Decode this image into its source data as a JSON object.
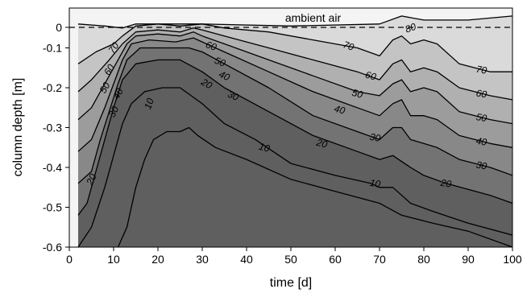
{
  "chart_data": {
    "type": "contour",
    "xlabel": "time [d]",
    "ylabel": "column depth [m]",
    "xlim": [
      0,
      100
    ],
    "ylim": [
      -0.6,
      0
    ],
    "xticks": [
      0,
      10,
      20,
      30,
      40,
      50,
      60,
      70,
      80,
      90,
      100
    ],
    "yticks": [
      0,
      -0.1,
      -0.2,
      -0.3,
      -0.4,
      -0.5,
      -0.6
    ],
    "annotation": "ambient air",
    "fill_colors": [
      "#f4f4f4",
      "#dadada",
      "#c4c4c4",
      "#b0b0b0",
      "#9c9c9c",
      "#888888",
      "#737373",
      "#5f5f5f"
    ],
    "levels": [
      {
        "level": 80,
        "points": [
          [
            2,
            -0.04
          ],
          [
            8,
            -0.045
          ],
          [
            12,
            -0.05
          ],
          [
            15,
            -0.04
          ],
          [
            30,
            -0.04
          ],
          [
            50,
            -0.045
          ],
          [
            70,
            -0.04
          ],
          [
            75,
            -0.02
          ],
          [
            80,
            -0.03
          ],
          [
            85,
            -0.03
          ],
          [
            90,
            -0.03
          ],
          [
            100,
            -0.02
          ]
        ]
      },
      {
        "level": 70,
        "points": [
          [
            2,
            -0.14
          ],
          [
            6,
            -0.11
          ],
          [
            10,
            -0.09
          ],
          [
            12,
            -0.07
          ],
          [
            15,
            -0.045
          ],
          [
            20,
            -0.04
          ],
          [
            25,
            -0.045
          ],
          [
            30,
            -0.04
          ],
          [
            35,
            -0.05
          ],
          [
            45,
            -0.06
          ],
          [
            55,
            -0.08
          ],
          [
            65,
            -0.1
          ],
          [
            70,
            -0.12
          ],
          [
            73,
            -0.08
          ],
          [
            75,
            -0.07
          ],
          [
            77,
            -0.09
          ],
          [
            80,
            -0.08
          ],
          [
            83,
            -0.09
          ],
          [
            88,
            -0.14
          ],
          [
            95,
            -0.16
          ],
          [
            100,
            -0.16
          ]
        ]
      },
      {
        "level": 60,
        "points": [
          [
            2,
            -0.21
          ],
          [
            5,
            -0.18
          ],
          [
            9,
            -0.13
          ],
          [
            12,
            -0.09
          ],
          [
            15,
            -0.06
          ],
          [
            20,
            -0.055
          ],
          [
            25,
            -0.06
          ],
          [
            28,
            -0.05
          ],
          [
            30,
            -0.055
          ],
          [
            35,
            -0.07
          ],
          [
            45,
            -0.1
          ],
          [
            55,
            -0.13
          ],
          [
            65,
            -0.16
          ],
          [
            70,
            -0.18
          ],
          [
            73,
            -0.14
          ],
          [
            75,
            -0.13
          ],
          [
            77,
            -0.16
          ],
          [
            80,
            -0.15
          ],
          [
            83,
            -0.16
          ],
          [
            88,
            -0.2
          ],
          [
            95,
            -0.22
          ],
          [
            100,
            -0.23
          ]
        ]
      },
      {
        "level": 50,
        "points": [
          [
            2,
            -0.28
          ],
          [
            5,
            -0.25
          ],
          [
            8,
            -0.19
          ],
          [
            11,
            -0.13
          ],
          [
            13,
            -0.09
          ],
          [
            15,
            -0.07
          ],
          [
            20,
            -0.065
          ],
          [
            25,
            -0.07
          ],
          [
            28,
            -0.06
          ],
          [
            30,
            -0.07
          ],
          [
            35,
            -0.09
          ],
          [
            45,
            -0.13
          ],
          [
            55,
            -0.17
          ],
          [
            65,
            -0.21
          ],
          [
            70,
            -0.22
          ],
          [
            73,
            -0.19
          ],
          [
            75,
            -0.18
          ],
          [
            77,
            -0.21
          ],
          [
            80,
            -0.2
          ],
          [
            83,
            -0.21
          ],
          [
            88,
            -0.26
          ],
          [
            95,
            -0.28
          ],
          [
            100,
            -0.29
          ]
        ]
      },
      {
        "level": 40,
        "points": [
          [
            2,
            -0.36
          ],
          [
            5,
            -0.33
          ],
          [
            8,
            -0.25
          ],
          [
            10,
            -0.19
          ],
          [
            12,
            -0.13
          ],
          [
            14,
            -0.09
          ],
          [
            18,
            -0.08
          ],
          [
            24,
            -0.085
          ],
          [
            28,
            -0.075
          ],
          [
            30,
            -0.085
          ],
          [
            35,
            -0.11
          ],
          [
            45,
            -0.16
          ],
          [
            55,
            -0.21
          ],
          [
            65,
            -0.25
          ],
          [
            70,
            -0.27
          ],
          [
            73,
            -0.24
          ],
          [
            75,
            -0.23
          ],
          [
            77,
            -0.27
          ],
          [
            80,
            -0.27
          ],
          [
            83,
            -0.28
          ],
          [
            88,
            -0.32
          ],
          [
            95,
            -0.34
          ],
          [
            100,
            -0.35
          ]
        ]
      },
      {
        "level": 30,
        "points": [
          [
            2,
            -0.44
          ],
          [
            5,
            -0.41
          ],
          [
            7,
            -0.33
          ],
          [
            9,
            -0.26
          ],
          [
            11,
            -0.19
          ],
          [
            13,
            -0.13
          ],
          [
            16,
            -0.1
          ],
          [
            22,
            -0.1
          ],
          [
            27,
            -0.1
          ],
          [
            30,
            -0.11
          ],
          [
            35,
            -0.14
          ],
          [
            45,
            -0.2
          ],
          [
            55,
            -0.27
          ],
          [
            65,
            -0.31
          ],
          [
            70,
            -0.33
          ],
          [
            73,
            -0.3
          ],
          [
            75,
            -0.3
          ],
          [
            77,
            -0.33
          ],
          [
            80,
            -0.34
          ],
          [
            83,
            -0.35
          ],
          [
            88,
            -0.38
          ],
          [
            95,
            -0.4
          ],
          [
            100,
            -0.42
          ]
        ]
      },
      {
        "level": 20,
        "points": [
          [
            2,
            -0.52
          ],
          [
            4,
            -0.49
          ],
          [
            6,
            -0.41
          ],
          [
            8,
            -0.33
          ],
          [
            10,
            -0.25
          ],
          [
            12,
            -0.18
          ],
          [
            15,
            -0.14
          ],
          [
            20,
            -0.13
          ],
          [
            25,
            -0.13
          ],
          [
            30,
            -0.16
          ],
          [
            35,
            -0.2
          ],
          [
            45,
            -0.26
          ],
          [
            55,
            -0.32
          ],
          [
            65,
            -0.36
          ],
          [
            70,
            -0.38
          ],
          [
            73,
            -0.37
          ],
          [
            77,
            -0.4
          ],
          [
            80,
            -0.42
          ],
          [
            85,
            -0.44
          ],
          [
            95,
            -0.47
          ],
          [
            100,
            -0.49
          ]
        ]
      },
      {
        "level": 10,
        "points": [
          [
            2,
            -0.6
          ],
          [
            5,
            -0.55
          ],
          [
            8,
            -0.45
          ],
          [
            10,
            -0.37
          ],
          [
            12,
            -0.29
          ],
          [
            14,
            -0.24
          ],
          [
            17,
            -0.21
          ],
          [
            21,
            -0.2
          ],
          [
            25,
            -0.2
          ],
          [
            30,
            -0.24
          ],
          [
            35,
            -0.29
          ],
          [
            42,
            -0.33
          ],
          [
            50,
            -0.39
          ],
          [
            60,
            -0.42
          ],
          [
            68,
            -0.44
          ],
          [
            70,
            -0.45
          ],
          [
            73,
            -0.45
          ],
          [
            77,
            -0.49
          ],
          [
            82,
            -0.51
          ],
          [
            90,
            -0.54
          ],
          [
            100,
            -0.57
          ]
        ]
      },
      {
        "level": 5,
        "points": [
          [
            11,
            -0.6
          ],
          [
            13,
            -0.55
          ],
          [
            15,
            -0.45
          ],
          [
            17,
            -0.38
          ],
          [
            19,
            -0.33
          ],
          [
            22,
            -0.31
          ],
          [
            25,
            -0.31
          ],
          [
            27,
            -0.3
          ],
          [
            29,
            -0.32
          ],
          [
            33,
            -0.35
          ],
          [
            40,
            -0.38
          ],
          [
            50,
            -0.43
          ],
          [
            60,
            -0.46
          ],
          [
            70,
            -0.49
          ],
          [
            75,
            -0.52
          ],
          [
            82,
            -0.54
          ],
          [
            90,
            -0.56
          ],
          [
            100,
            -0.6
          ]
        ]
      }
    ],
    "contour_labels": [
      {
        "text": "80",
        "x": 77,
        "y": -0.05,
        "angle": -20
      },
      {
        "text": "70",
        "x": 10,
        "y": -0.1,
        "angle": -55
      },
      {
        "text": "70",
        "x": 63,
        "y": -0.095,
        "angle": 20
      },
      {
        "text": "70",
        "x": 93,
        "y": -0.155,
        "angle": 10
      },
      {
        "text": "60",
        "x": 9,
        "y": -0.155,
        "angle": -58
      },
      {
        "text": "60",
        "x": 32,
        "y": -0.095,
        "angle": 20
      },
      {
        "text": "60",
        "x": 68,
        "y": -0.17,
        "angle": 15
      },
      {
        "text": "60",
        "x": 93,
        "y": -0.215,
        "angle": 10
      },
      {
        "text": "50",
        "x": 8,
        "y": -0.2,
        "angle": -60
      },
      {
        "text": "50",
        "x": 34,
        "y": -0.135,
        "angle": 22
      },
      {
        "text": "50",
        "x": 65,
        "y": -0.215,
        "angle": 15
      },
      {
        "text": "50",
        "x": 93,
        "y": -0.275,
        "angle": 10
      },
      {
        "text": "40",
        "x": 11,
        "y": -0.215,
        "angle": -62
      },
      {
        "text": "40",
        "x": 35,
        "y": -0.17,
        "angle": 25
      },
      {
        "text": "40",
        "x": 61,
        "y": -0.255,
        "angle": 15
      },
      {
        "text": "40",
        "x": 93,
        "y": -0.335,
        "angle": 10
      },
      {
        "text": "30",
        "x": 10,
        "y": -0.26,
        "angle": -64
      },
      {
        "text": "30",
        "x": 37,
        "y": -0.22,
        "angle": 25
      },
      {
        "text": "30",
        "x": 69,
        "y": -0.325,
        "angle": 10
      },
      {
        "text": "30",
        "x": 93,
        "y": -0.395,
        "angle": 10
      },
      {
        "text": "20",
        "x": 5,
        "y": -0.43,
        "angle": -65
      },
      {
        "text": "20",
        "x": 31,
        "y": -0.19,
        "angle": 30
      },
      {
        "text": "20",
        "x": 57,
        "y": -0.34,
        "angle": 15
      },
      {
        "text": "20",
        "x": 85,
        "y": -0.44,
        "angle": 10
      },
      {
        "text": "10",
        "x": 18,
        "y": -0.24,
        "angle": -70
      },
      {
        "text": "10",
        "x": 44,
        "y": -0.35,
        "angle": 15
      },
      {
        "text": "10",
        "x": 69,
        "y": -0.44,
        "angle": 10
      }
    ]
  }
}
